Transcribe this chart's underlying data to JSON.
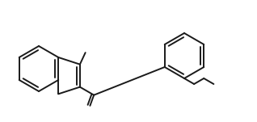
{
  "background_color": "#ffffff",
  "line_color": "#1a1a1a",
  "line_width": 1.4,
  "figsize": [
    3.18,
    1.51
  ],
  "dpi": 100,
  "xlim": [
    0,
    318
  ],
  "ylim": [
    0,
    151
  ]
}
